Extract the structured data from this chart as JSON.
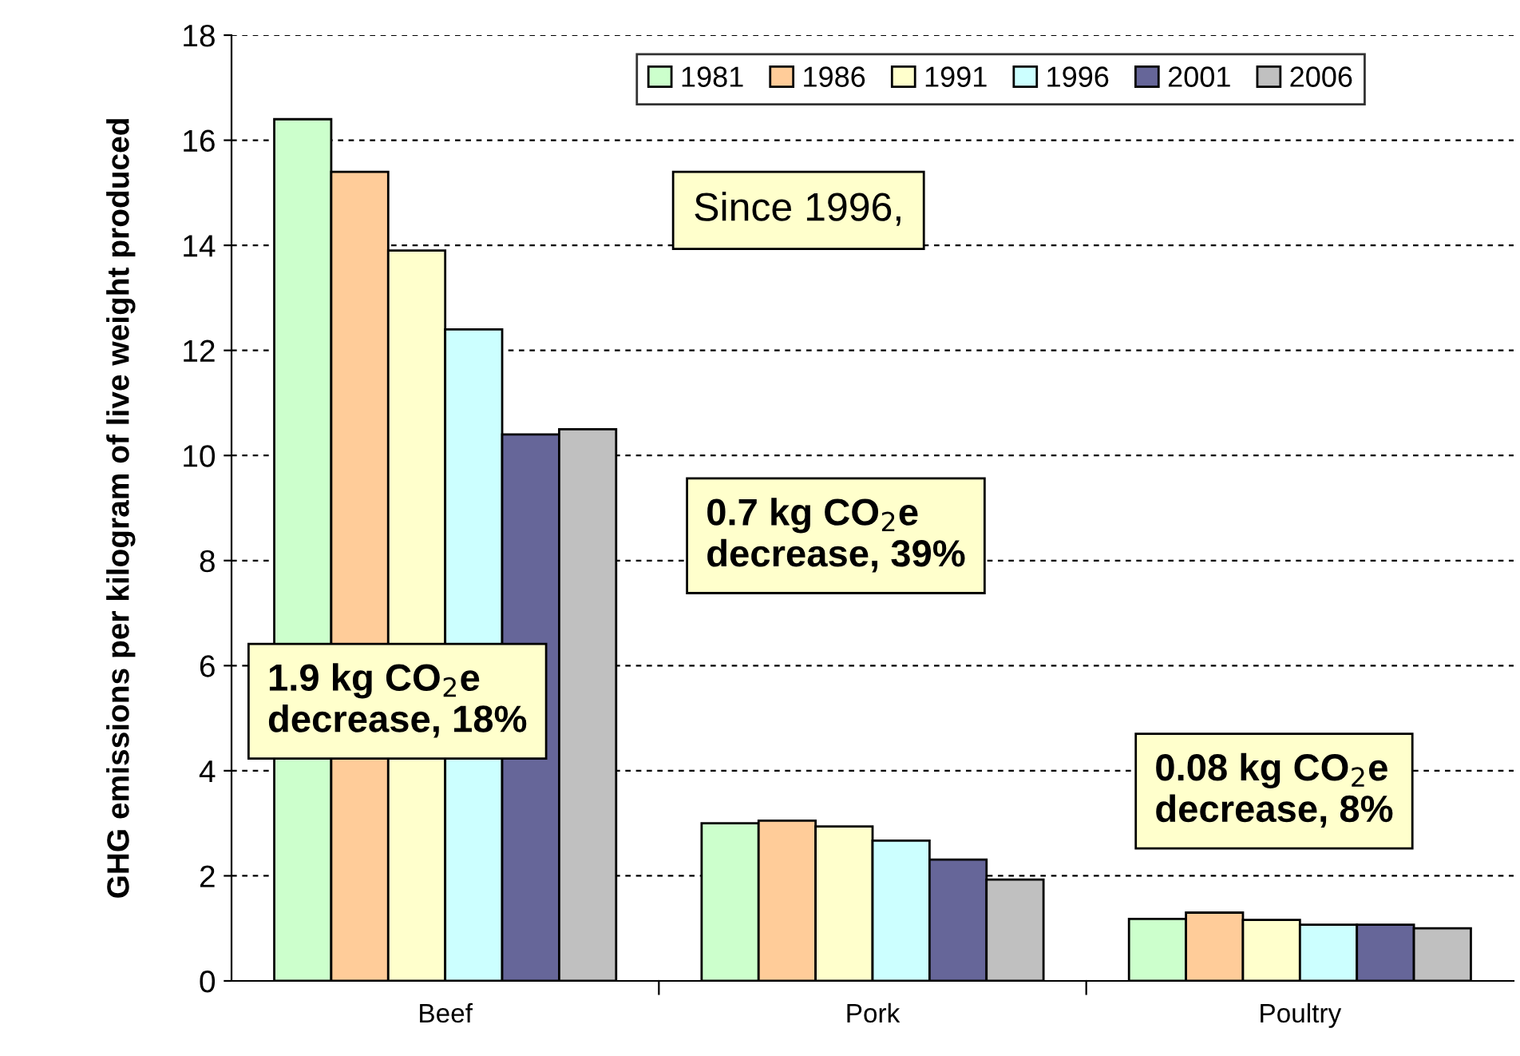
{
  "chart_data": {
    "type": "bar",
    "ylabel": "GHG emissions per kilogram of live weight produced",
    "categories": [
      "Beef",
      "Pork",
      "Poultry"
    ],
    "series": [
      {
        "name": "1981",
        "color": "#ccffcc",
        "values": [
          16.4,
          3.0,
          1.18
        ]
      },
      {
        "name": "1986",
        "color": "#ffcc99",
        "values": [
          15.4,
          3.05,
          1.3
        ]
      },
      {
        "name": "1991",
        "color": "#ffffcc",
        "values": [
          13.9,
          2.94,
          1.16
        ]
      },
      {
        "name": "1996",
        "color": "#ccffff",
        "values": [
          12.4,
          2.67,
          1.07
        ]
      },
      {
        "name": "2001",
        "color": "#666699",
        "values": [
          10.4,
          2.31,
          1.07
        ]
      },
      {
        "name": "2006",
        "color": "#c0c0c0",
        "values": [
          10.5,
          1.93,
          1.0
        ]
      }
    ],
    "ylim": [
      0,
      18
    ],
    "yticks": [
      0,
      2,
      4,
      6,
      8,
      10,
      12,
      14,
      16,
      18
    ],
    "grid": "y",
    "legend": "top right",
    "annotations": [
      "Since 1996,",
      "0.7 kg CO$_{2}$e\ndecrease, 39%",
      "1.9 kg CO$_{2}$e\ndecrease, 18%",
      "0.08 kg CO$_{2}$e\ndecrease, 8%"
    ]
  }
}
